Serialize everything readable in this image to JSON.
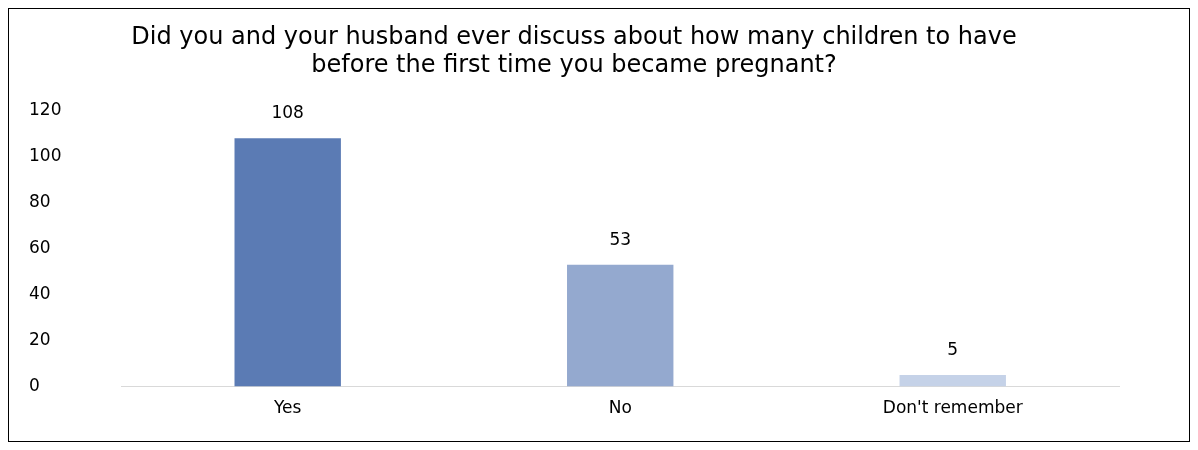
{
  "chart_data": {
    "type": "bar",
    "title": "Did you and your husband ever discuss about how many children to have before the first time you became pregnant?",
    "categories": [
      "Yes",
      "No",
      "Don't remember"
    ],
    "values": [
      108,
      53,
      5
    ],
    "colors": [
      "#5b7bb4",
      "#94a9cf",
      "#c5d2e8"
    ],
    "ylim": [
      0,
      120
    ],
    "yticks": [
      0,
      20,
      40,
      60,
      80,
      100,
      120
    ],
    "grid": false,
    "legend": false,
    "data_labels": true
  }
}
